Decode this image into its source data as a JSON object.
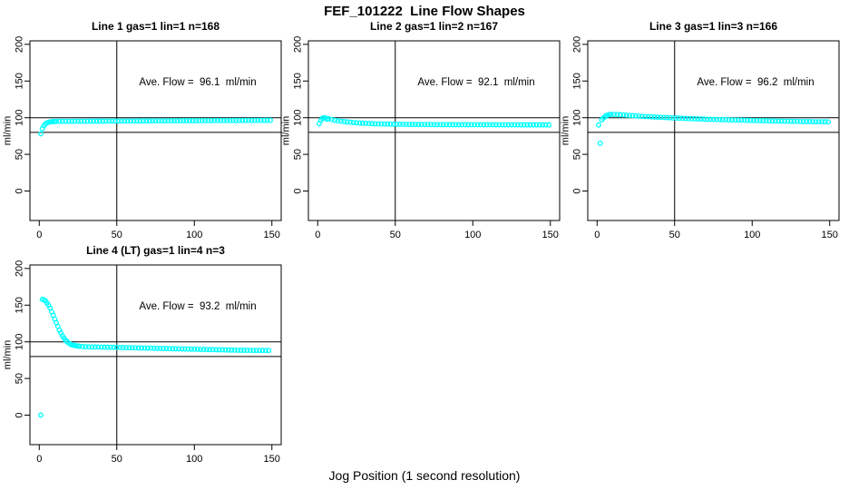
{
  "chart_data": {
    "type": "scatter",
    "title": "FEF_101222  Line Flow Shapes",
    "xlabel": "Jog Position (1 second resolution)",
    "ylabel": "ml/min",
    "point_color": "#00FFFF",
    "axis_color": "#000000",
    "background": "#ffffff",
    "xlim": [
      -6,
      156
    ],
    "ylim": [
      -40.2,
      204.8
    ],
    "x_ticks": [
      0,
      50,
      100,
      150
    ],
    "y_ticks": [
      0,
      50,
      100,
      150,
      200
    ],
    "reference_hlines": [
      100,
      80
    ],
    "reference_vline": 50,
    "grid": false,
    "legend": "none",
    "annotation_anchor": {
      "x": 102,
      "y": 147
    },
    "subplots": [
      {
        "title": "Line 1 gas=1 lin=1 n=168",
        "annotation": "Ave. Flow =  96.1  ml/min",
        "ave_flow_ml_min": 96.1,
        "gas": 1,
        "lin": 1,
        "n": 168,
        "series": {
          "x_start": 1,
          "x_step": 2,
          "y": [
            78.0,
            89.0,
            93.0,
            94.3,
            94.8,
            95.0,
            95.0,
            95.1,
            95.1,
            95.1,
            95.1,
            95.2,
            95.2,
            95.2,
            95.2,
            95.2,
            95.3,
            95.3,
            95.3,
            95.3,
            95.3,
            95.4,
            95.4,
            95.4,
            95.4,
            95.4,
            95.5,
            95.5,
            95.5,
            95.5,
            95.5,
            95.6,
            95.6,
            95.6,
            95.6,
            95.6,
            95.7,
            95.7,
            95.7,
            95.7,
            95.7,
            95.8,
            95.8,
            95.8,
            95.8,
            95.8,
            95.9,
            95.9,
            95.9,
            95.9,
            95.9,
            96.0,
            96.0,
            96.0,
            96.0,
            96.0,
            96.1,
            96.1,
            96.1,
            96.1,
            96.1,
            96.2,
            96.2,
            96.2,
            96.2,
            96.2,
            96.3,
            96.3,
            96.3,
            96.3,
            96.3,
            96.4,
            96.4,
            96.4,
            96.4
          ]
        },
        "extra_points": [
          [
            2,
            85.0
          ],
          [
            4,
            91.5
          ],
          [
            6,
            93.8
          ],
          [
            8,
            94.6
          ],
          [
            10,
            94.9
          ]
        ]
      },
      {
        "title": "Line 2 gas=1 lin=2 n=167",
        "annotation": "Ave. Flow =  92.1  ml/min",
        "ave_flow_ml_min": 92.1,
        "gas": 1,
        "lin": 2,
        "n": 167,
        "series": {
          "x_start": 1,
          "x_step": 2,
          "y": [
            92.0,
            99.0,
            99.5,
            98.5,
            97.5,
            96.5,
            95.8,
            95.2,
            94.7,
            94.2,
            93.8,
            93.4,
            93.1,
            92.8,
            92.5,
            92.3,
            92.1,
            91.9,
            91.7,
            91.6,
            91.5,
            91.4,
            91.3,
            91.2,
            91.1,
            91.1,
            91.0,
            91.0,
            90.9,
            90.9,
            90.8,
            90.8,
            90.8,
            90.7,
            90.7,
            90.7,
            90.7,
            90.6,
            90.6,
            90.6,
            90.6,
            90.6,
            90.5,
            90.5,
            90.5,
            90.5,
            90.5,
            90.5,
            90.5,
            90.4,
            90.4,
            90.4,
            90.4,
            90.4,
            90.4,
            90.4,
            90.4,
            90.3,
            90.3,
            90.3,
            90.3,
            90.3,
            90.3,
            90.3,
            90.3,
            90.3,
            90.2,
            90.2,
            90.2,
            90.2,
            90.2,
            90.2,
            90.2,
            90.2,
            90.2
          ]
        },
        "extra_points": [
          [
            2,
            96.5
          ],
          [
            4,
            99.8
          ],
          [
            6,
            98.0
          ]
        ]
      },
      {
        "title": "Line 3 gas=1 lin=3 n=166",
        "annotation": "Ave. Flow =  96.2  ml/min",
        "ave_flow_ml_min": 96.2,
        "gas": 1,
        "lin": 3,
        "n": 166,
        "series": {
          "x_start": 1,
          "x_step": 2,
          "y": [
            90.0,
            97.0,
            101.0,
            103.5,
            104.5,
            104.5,
            104.3,
            104.0,
            103.7,
            103.4,
            103.1,
            102.8,
            102.5,
            102.2,
            101.9,
            101.6,
            101.4,
            101.1,
            100.9,
            100.7,
            100.5,
            100.3,
            100.1,
            99.9,
            99.7,
            99.5,
            99.3,
            99.2,
            99.0,
            98.8,
            98.7,
            98.5,
            98.4,
            98.2,
            98.1,
            97.9,
            97.8,
            97.7,
            97.5,
            97.4,
            97.3,
            97.2,
            97.0,
            96.9,
            96.8,
            96.7,
            96.6,
            96.5,
            96.4,
            96.3,
            96.2,
            96.1,
            96.0,
            95.9,
            95.8,
            95.7,
            95.6,
            95.5,
            95.4,
            95.3,
            95.2,
            95.2,
            95.1,
            95.0,
            94.9,
            94.9,
            94.8,
            94.7,
            94.7,
            94.6,
            94.5,
            94.5,
            94.4,
            94.4,
            94.3
          ]
        },
        "extra_points": [
          [
            2,
            65.0
          ],
          [
            4,
            99.5
          ],
          [
            6,
            103.0
          ],
          [
            8,
            104.3
          ]
        ]
      },
      {
        "title": "Line 4 (LT) gas=1 lin=4 n=3",
        "annotation": "Ave. Flow =  93.2  ml/min",
        "ave_flow_ml_min": 93.2,
        "gas": 1,
        "lin": 4,
        "n": 3,
        "series": {
          "x_start": 2,
          "x_step": 2,
          "y": [
            158.0,
            156.0,
            150.0,
            141.0,
            131.0,
            121.0,
            112.0,
            105.0,
            100.0,
            97.0,
            95.5,
            94.5,
            94.0,
            93.6,
            93.3,
            93.2,
            93.1,
            93.0,
            92.9,
            92.8,
            92.7,
            92.6,
            92.6,
            92.5,
            92.4,
            92.3,
            92.2,
            92.1,
            92.0,
            91.9,
            91.8,
            91.7,
            91.6,
            91.5,
            91.4,
            91.3,
            91.2,
            91.1,
            91.0,
            90.9,
            90.8,
            90.7,
            90.6,
            90.5,
            90.4,
            90.3,
            90.2,
            90.1,
            90.0,
            89.9,
            89.8,
            89.7,
            89.6,
            89.5,
            89.4,
            89.3,
            89.2,
            89.1,
            89.0,
            88.9,
            88.8,
            88.8,
            88.7,
            88.6,
            88.5,
            88.5,
            88.4,
            88.4,
            88.3,
            88.3,
            88.3,
            88.3,
            88.3,
            88.3
          ]
        },
        "extra_points": [
          [
            1,
            0.0
          ],
          [
            3,
            157.0
          ],
          [
            5,
            153.0
          ],
          [
            7,
            146.0
          ],
          [
            9,
            136.0
          ],
          [
            11,
            126.0
          ],
          [
            13,
            116.0
          ],
          [
            15,
            108.0
          ],
          [
            17,
            102.0
          ],
          [
            19,
            98.5
          ],
          [
            21,
            96.0
          ],
          [
            23,
            95.0
          ],
          [
            25,
            94.2
          ]
        ]
      }
    ]
  }
}
